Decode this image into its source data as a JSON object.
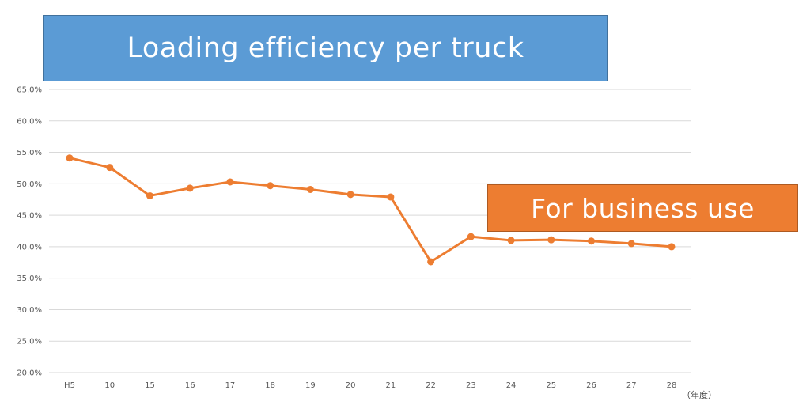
{
  "chart_data": {
    "type": "line",
    "title": "Loading efficiency per truck",
    "categories": [
      "H5",
      "10",
      "15",
      "16",
      "17",
      "18",
      "19",
      "20",
      "21",
      "22",
      "23",
      "24",
      "25",
      "26",
      "27",
      "28"
    ],
    "series": [
      {
        "name": "For business use",
        "values": [
          54.1,
          52.6,
          48.1,
          49.3,
          50.3,
          49.7,
          49.1,
          48.3,
          47.9,
          37.6,
          41.6,
          41.0,
          41.1,
          40.9,
          40.5,
          40.0
        ],
        "color": "#ed7d31"
      }
    ],
    "ylim": [
      20,
      65
    ],
    "yticks": [
      20,
      25,
      30,
      35,
      40,
      45,
      50,
      55,
      60,
      65
    ],
    "y_tick_suffix": "%",
    "x_unit_label": "（年度）",
    "grid": true,
    "legend": "right"
  },
  "colors": {
    "title_box": "#5b9bd5",
    "series_box": "#ed7d31",
    "line": "#ed7d31",
    "grid": "#d9d9d9"
  }
}
